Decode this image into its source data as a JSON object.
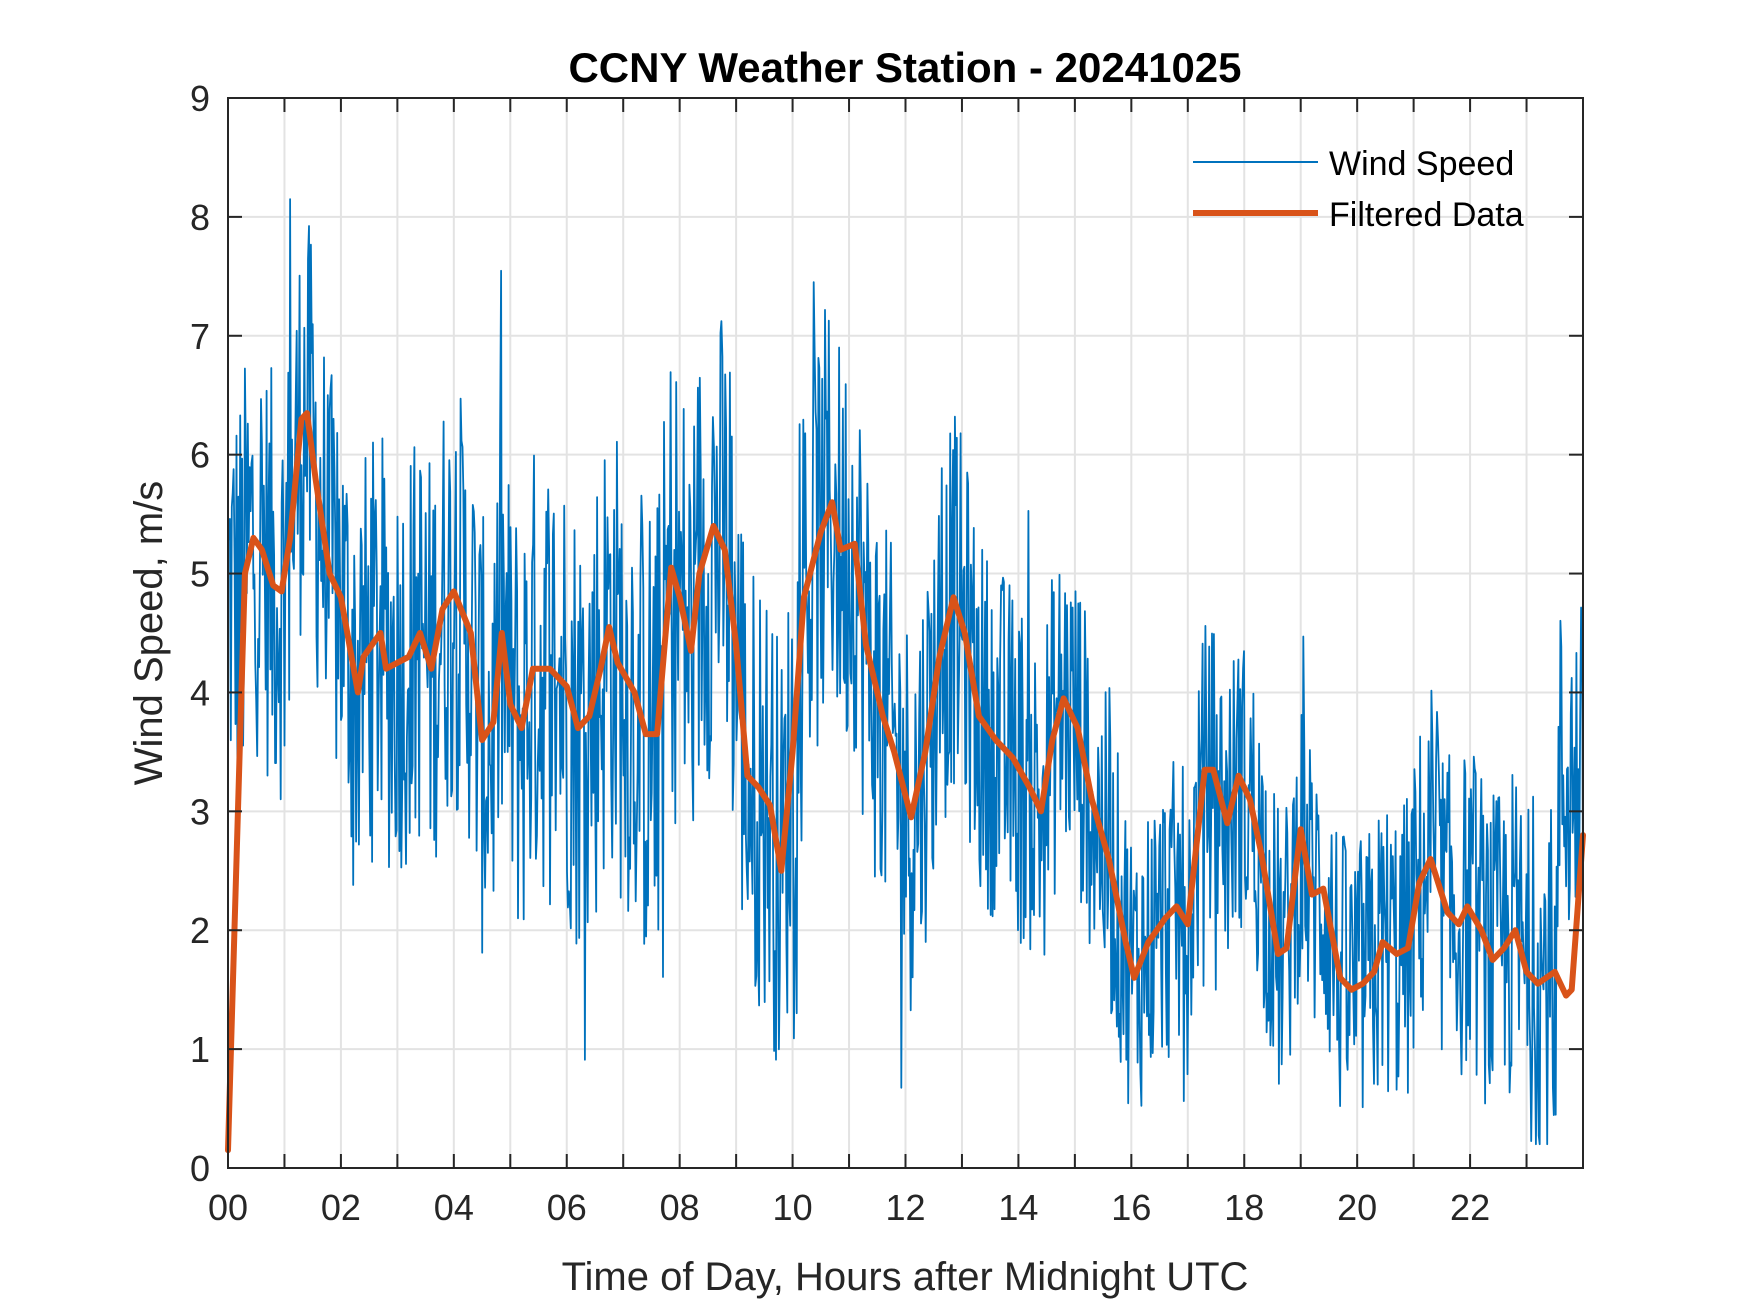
{
  "chart_data": {
    "type": "line",
    "title": "CCNY Weather Station - 20241025",
    "xlabel": "Time of Day, Hours after Midnight UTC",
    "ylabel": "Wind Speed, m/s",
    "xlim": [
      0,
      24
    ],
    "ylim": [
      0,
      9
    ],
    "grid": true,
    "legend_position": "top-right",
    "x_ticks": [
      0,
      2,
      4,
      6,
      8,
      10,
      12,
      14,
      16,
      18,
      20,
      22
    ],
    "x_tick_labels": [
      "00",
      "02",
      "04",
      "06",
      "08",
      "10",
      "12",
      "14",
      "16",
      "18",
      "20",
      "22"
    ],
    "x_minor_grid_step_hours": 1,
    "y_ticks": [
      0,
      1,
      2,
      3,
      4,
      5,
      6,
      7,
      8,
      9
    ],
    "y_tick_labels": [
      "0",
      "1",
      "2",
      "3",
      "4",
      "5",
      "6",
      "7",
      "8",
      "9"
    ],
    "series": [
      {
        "name": "Wind Speed",
        "color": "#0072BD",
        "style": "thin",
        "note": "raw ~1-minute samples; approximated by filtered trend plus sampled deviations",
        "max_value": 8.15,
        "max_at_hour": 1.1,
        "min_value": 0.2,
        "deviation_amplitude": [
          [
            0,
            1.6
          ],
          [
            2,
            1.5
          ],
          [
            8,
            1.8
          ],
          [
            10,
            1.6
          ],
          [
            14,
            1.3
          ],
          [
            16,
            1.1
          ],
          [
            20,
            1.1
          ],
          [
            24,
            1.3
          ]
        ]
      },
      {
        "name": "Filtered Data",
        "color": "#D95319",
        "style": "thick",
        "x": [
          0.0,
          0.3,
          0.45,
          0.6,
          0.8,
          0.95,
          1.1,
          1.3,
          1.4,
          1.55,
          1.8,
          2.0,
          2.3,
          2.4,
          2.7,
          2.8,
          3.2,
          3.4,
          3.6,
          3.8,
          4.0,
          4.3,
          4.5,
          4.7,
          4.85,
          5.0,
          5.2,
          5.4,
          5.7,
          6.0,
          6.2,
          6.4,
          6.6,
          6.75,
          6.9,
          7.2,
          7.4,
          7.6,
          7.85,
          8.0,
          8.2,
          8.35,
          8.6,
          8.8,
          9.0,
          9.2,
          9.4,
          9.6,
          9.8,
          10.0,
          10.2,
          10.5,
          10.7,
          10.85,
          11.1,
          11.3,
          11.6,
          11.8,
          12.1,
          12.35,
          12.6,
          12.85,
          13.05,
          13.3,
          13.6,
          13.9,
          14.2,
          14.4,
          14.6,
          14.8,
          15.05,
          15.3,
          15.6,
          15.9,
          16.05,
          16.3,
          16.6,
          16.8,
          17.0,
          17.3,
          17.45,
          17.7,
          17.9,
          18.1,
          18.3,
          18.6,
          18.75,
          19.0,
          19.2,
          19.4,
          19.7,
          19.9,
          20.1,
          20.3,
          20.45,
          20.7,
          20.9,
          21.1,
          21.3,
          21.6,
          21.8,
          21.95,
          22.2,
          22.4,
          22.6,
          22.8,
          23.0,
          23.2,
          23.5,
          23.7,
          23.8,
          24.0
        ],
        "values": [
          0.15,
          5.0,
          5.3,
          5.2,
          4.9,
          4.85,
          5.3,
          6.3,
          6.35,
          5.8,
          5.0,
          4.8,
          4.0,
          4.3,
          4.5,
          4.2,
          4.3,
          4.5,
          4.2,
          4.7,
          4.85,
          4.5,
          3.6,
          3.75,
          4.5,
          3.9,
          3.7,
          4.2,
          4.2,
          4.05,
          3.7,
          3.8,
          4.2,
          4.55,
          4.25,
          4.0,
          3.65,
          3.65,
          5.05,
          4.8,
          4.35,
          5.0,
          5.4,
          5.2,
          4.4,
          3.3,
          3.2,
          3.05,
          2.5,
          3.5,
          4.8,
          5.35,
          5.6,
          5.2,
          5.25,
          4.4,
          3.8,
          3.5,
          2.95,
          3.5,
          4.3,
          4.8,
          4.5,
          3.8,
          3.6,
          3.45,
          3.2,
          3.0,
          3.6,
          3.95,
          3.7,
          3.1,
          2.6,
          1.9,
          1.6,
          1.9,
          2.1,
          2.2,
          2.05,
          3.35,
          3.35,
          2.9,
          3.3,
          3.1,
          2.65,
          1.8,
          1.85,
          2.85,
          2.3,
          2.35,
          1.6,
          1.5,
          1.55,
          1.65,
          1.9,
          1.8,
          1.85,
          2.4,
          2.6,
          2.15,
          2.05,
          2.2,
          2.0,
          1.75,
          1.85,
          2.0,
          1.65,
          1.55,
          1.65,
          1.45,
          1.5,
          2.8
        ]
      }
    ]
  },
  "legend": {
    "items": [
      {
        "label": "Wind Speed",
        "color": "#0072BD"
      },
      {
        "label": "Filtered Data",
        "color": "#D95319"
      }
    ]
  }
}
